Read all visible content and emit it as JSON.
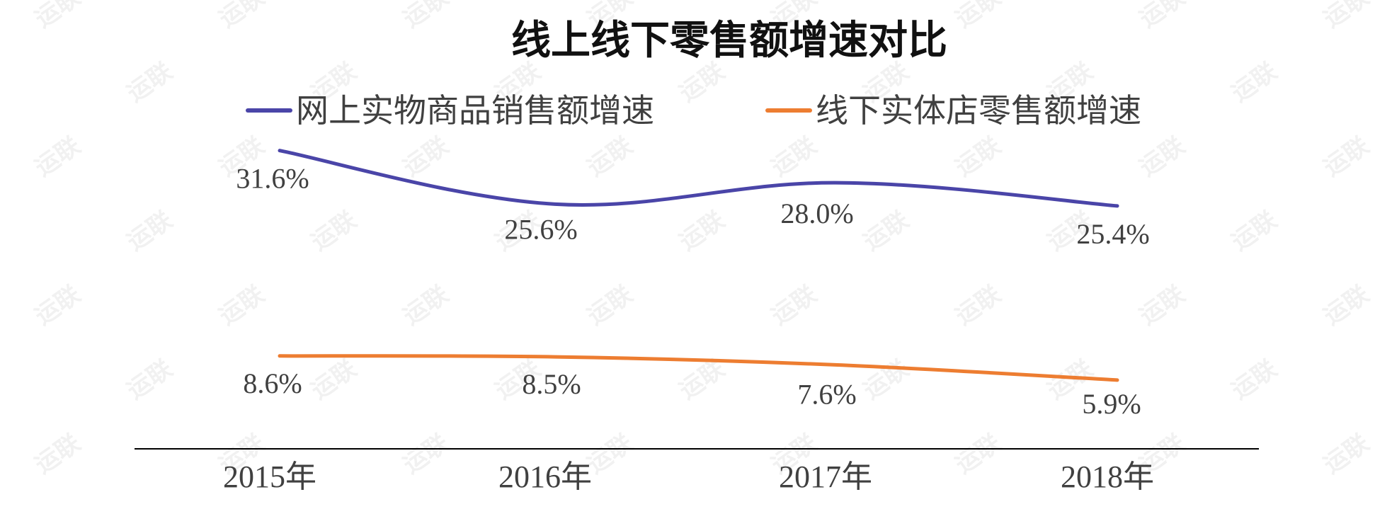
{
  "watermark": "运联",
  "colors": {
    "series_online": "#4A45A8",
    "series_offline": "#ED7D31",
    "axis": "#000000",
    "text": "#404040"
  },
  "chart_data": {
    "type": "line",
    "title": "线上线下零售额增速对比",
    "categories": [
      "2015年",
      "2016年",
      "2017年",
      "2018年"
    ],
    "series": [
      {
        "name": "网上实物商品销售额增速",
        "values": [
          31.6,
          25.6,
          28.0,
          25.4
        ],
        "labels": [
          "31.6%",
          "25.6%",
          "28.0%",
          "25.4%"
        ],
        "color": "#4A45A8"
      },
      {
        "name": "线下实体店零售额增速",
        "values": [
          8.6,
          8.5,
          7.6,
          5.9
        ],
        "labels": [
          "8.6%",
          "8.5%",
          "7.6%",
          "5.9%"
        ],
        "color": "#ED7D31"
      }
    ],
    "ylim": [
      -1.8,
      41.8
    ],
    "legend": "top",
    "grid": false,
    "y_axis_visible": false,
    "smooth": true
  }
}
